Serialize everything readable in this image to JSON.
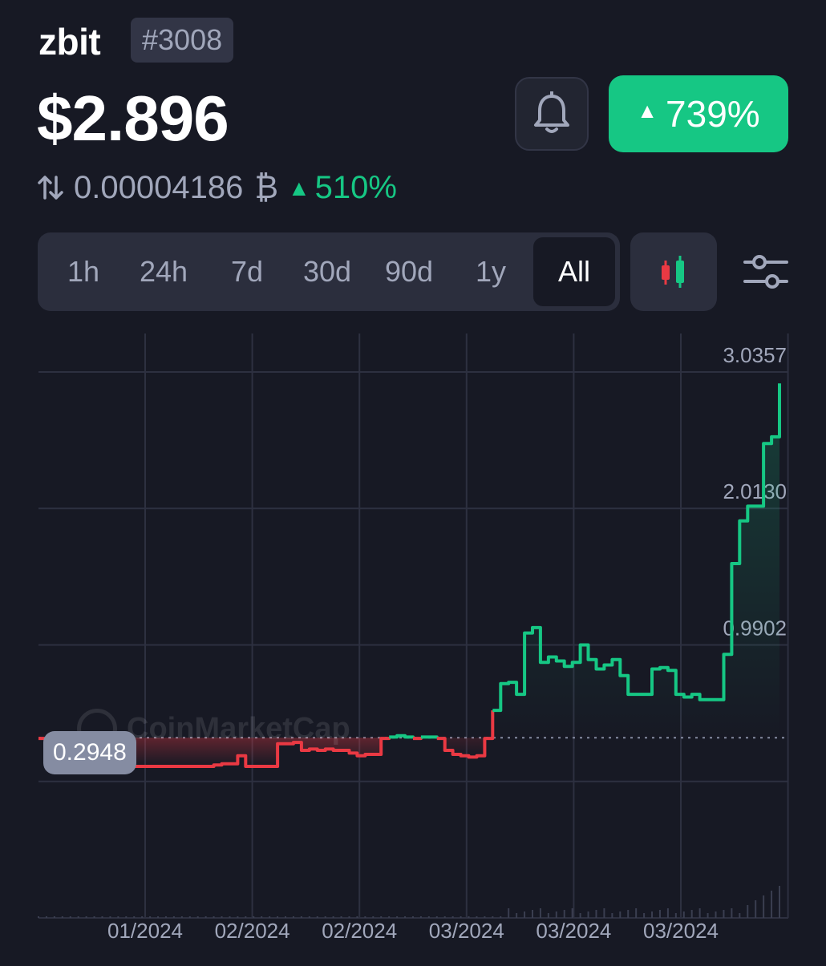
{
  "coin": {
    "name": "zbit",
    "rank": "#3008",
    "price": "$2.896",
    "change_pct": "739%",
    "btc_price": "0.00004186",
    "btc_symbol": "₿",
    "btc_change_pct": "510%"
  },
  "icons": {
    "alert": "bell-icon",
    "swap": "swap-arrows-icon",
    "chart_type": "candlestick-icon",
    "settings": "sliders-icon"
  },
  "ranges": [
    "1h",
    "24h",
    "7d",
    "30d",
    "90d",
    "1y",
    "All"
  ],
  "selected_range": "All",
  "watermark": "CoinMarketCap",
  "colors": {
    "background": "#171924",
    "up": "#16c784",
    "down": "#ea3943",
    "muted": "#a1a7bb"
  },
  "chart_data": {
    "type": "line",
    "title": "",
    "xlabel": "",
    "ylabel": "",
    "x_tick_labels": [
      "01/2024",
      "02/2024",
      "02/2024",
      "03/2024",
      "03/2024",
      "03/2024"
    ],
    "y_tick_labels": [
      "3.0357",
      "2.0130",
      "0.9902"
    ],
    "ylim": [
      -1.0553,
      3.0357
    ],
    "start_value_label": "0.2948",
    "reference_line": 0.2948,
    "grid": true,
    "series": [
      {
        "values": [
          0.29,
          0.14,
          0.12,
          0.11,
          0.12,
          0.11,
          0.1,
          0.09,
          0.08,
          0.08,
          0.08,
          0.08,
          0.08,
          0.08,
          0.08,
          0.08,
          0.08,
          0.08,
          0.08,
          0.08,
          0.08,
          0.08,
          0.09,
          0.1,
          0.1,
          0.16,
          0.08,
          0.08,
          0.08,
          0.08,
          0.25,
          0.25,
          0.26,
          0.2,
          0.21,
          0.2,
          0.21,
          0.2,
          0.2,
          0.18,
          0.16,
          0.17,
          0.17,
          0.29,
          0.3,
          0.31,
          0.3,
          0.29,
          0.3,
          0.3,
          0.29,
          0.2,
          0.17,
          0.16,
          0.15,
          0.16,
          0.29,
          0.5,
          0.7,
          0.71,
          0.62,
          1.08,
          1.12,
          0.86,
          0.9,
          0.87,
          0.83,
          0.86,
          0.99,
          0.88,
          0.81,
          0.84,
          0.88,
          0.76,
          0.62,
          0.62,
          0.62,
          0.81,
          0.82,
          0.8,
          0.62,
          0.6,
          0.62,
          0.58,
          0.58,
          0.58,
          0.92,
          1.6,
          1.92,
          2.03,
          2.03,
          2.5,
          2.55,
          2.95
        ]
      }
    ]
  }
}
